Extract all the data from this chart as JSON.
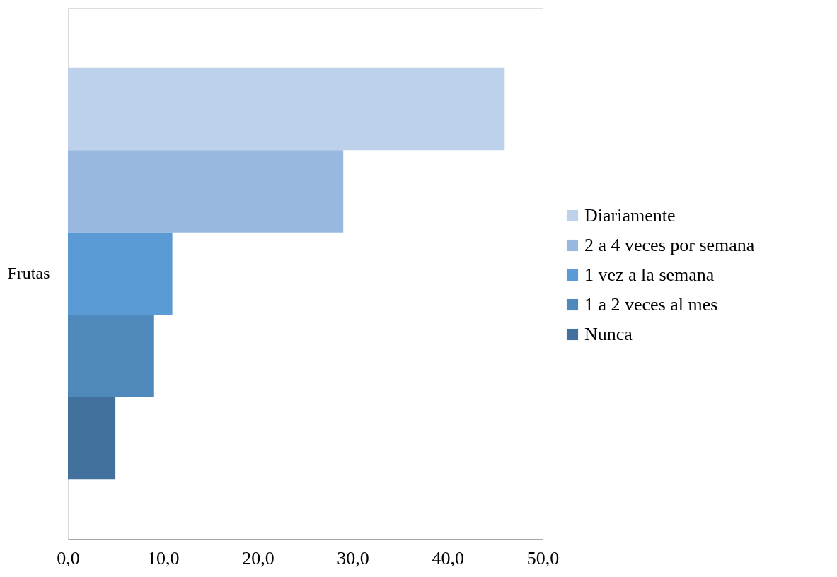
{
  "chart_data": {
    "type": "bar",
    "orientation": "horizontal",
    "categories": [
      "Frutas"
    ],
    "series": [
      {
        "name": "Diariamente",
        "color": "#bdd1ea",
        "values": [
          46.0
        ]
      },
      {
        "name": "2 a 4 veces por semana",
        "color": "#98b8df",
        "values": [
          29.0
        ]
      },
      {
        "name": "1 vez a la semana",
        "color": "#5b9bd5",
        "values": [
          11.0
        ]
      },
      {
        "name": "1 a 2 veces al mes",
        "color": "#4f89bb",
        "values": [
          9.0
        ]
      },
      {
        "name": "Nunca",
        "color": "#41719c",
        "values": [
          5.0
        ]
      }
    ],
    "xlim": [
      0,
      50
    ],
    "xticks": [
      {
        "value": 0,
        "label": "0,0"
      },
      {
        "value": 10,
        "label": "10,0"
      },
      {
        "value": 20,
        "label": "20,0"
      },
      {
        "value": 30,
        "label": "30,0"
      },
      {
        "value": 40,
        "label": "40,0"
      },
      {
        "value": 50,
        "label": "50,0"
      }
    ],
    "grid": false,
    "legend": "right"
  }
}
